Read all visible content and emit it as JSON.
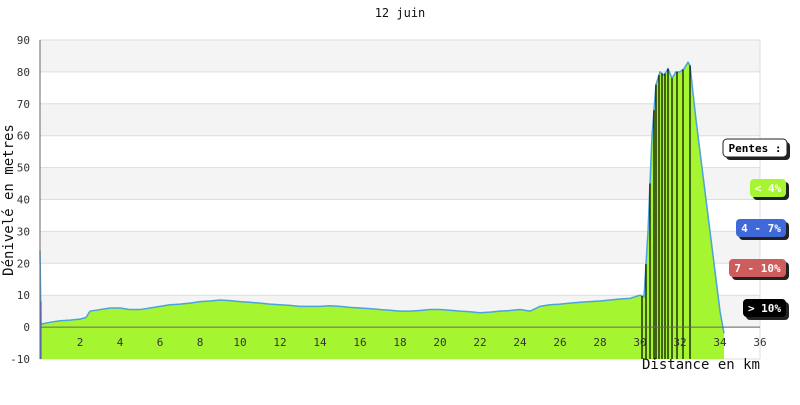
{
  "chart_data": {
    "type": "area",
    "title": "12 juin",
    "xlabel": "Distance en km",
    "ylabel": "Dénivelé en metres",
    "xlim": [
      0,
      36
    ],
    "ylim": [
      -10,
      90
    ],
    "x_ticks": [
      2,
      4,
      6,
      8,
      10,
      12,
      14,
      16,
      18,
      20,
      22,
      24,
      26,
      28,
      30,
      32,
      34,
      36
    ],
    "y_ticks": [
      -10,
      0,
      10,
      20,
      30,
      40,
      50,
      60,
      70,
      80,
      90
    ],
    "grid": "horizontal bands",
    "profile": {
      "x": [
        0,
        0.05,
        0.1,
        0.5,
        1,
        1.5,
        2,
        2.3,
        2.5,
        3,
        3.5,
        4,
        4.5,
        5,
        5.5,
        6,
        6.5,
        7,
        7.5,
        8,
        8.5,
        9,
        9.5,
        10,
        10.5,
        11,
        11.5,
        12,
        12.5,
        13,
        13.5,
        14,
        14.5,
        15,
        15.5,
        16,
        16.5,
        17,
        17.5,
        18,
        18.5,
        19,
        19.5,
        20,
        20.5,
        21,
        21.5,
        22,
        22.5,
        23,
        23.5,
        24,
        24.5,
        25,
        25.5,
        26,
        26.5,
        27,
        27.5,
        28,
        28.5,
        29,
        29.5,
        30,
        30.2,
        30.4,
        30.6,
        30.8,
        31,
        31.2,
        31.4,
        31.6,
        31.8,
        32,
        32.2,
        32.4,
        32.5,
        32.8,
        33.2,
        33.6,
        34,
        34.2
      ],
      "y": [
        24,
        1,
        1,
        1.5,
        2,
        2.2,
        2.5,
        3,
        5,
        5.5,
        6,
        6,
        5.5,
        5.5,
        6,
        6.5,
        7,
        7.2,
        7.5,
        8,
        8.2,
        8.5,
        8.3,
        8,
        7.8,
        7.5,
        7.2,
        7,
        6.8,
        6.5,
        6.5,
        6.5,
        6.7,
        6.5,
        6.2,
        6,
        5.8,
        5.5,
        5.3,
        5,
        5,
        5.2,
        5.5,
        5.5,
        5.3,
        5,
        4.8,
        4.5,
        4.7,
        5,
        5.2,
        5.5,
        5,
        6.5,
        7,
        7.2,
        7.5,
        7.8,
        8,
        8.2,
        8.5,
        8.8,
        9,
        10,
        9.5,
        30,
        60,
        76,
        80,
        79,
        81,
        78,
        80,
        80,
        81,
        83,
        82,
        65,
        45,
        25,
        5,
        -2
      ]
    },
    "slope_markers_km": [
      30.1,
      30.3,
      30.5,
      30.7,
      30.8,
      30.95,
      31.1,
      31.25,
      31.4,
      31.6,
      31.85,
      32.15,
      32.5
    ],
    "legend": {
      "title": "Pentes :",
      "items": [
        {
          "label": "< 4%",
          "color": "#a6f531"
        },
        {
          "label": "4 - 7%",
          "color": "#3f68d8"
        },
        {
          "label": "7 - 10%",
          "color": "#cd5c5c"
        },
        {
          "label": "> 10%",
          "color": "#000000"
        }
      ],
      "placement": "right"
    },
    "colors": {
      "fill": "#a6f531",
      "line": "#4aa3df",
      "band_light": "#f4f4f4",
      "band_white": "#ffffff",
      "marker": "#000000"
    }
  }
}
